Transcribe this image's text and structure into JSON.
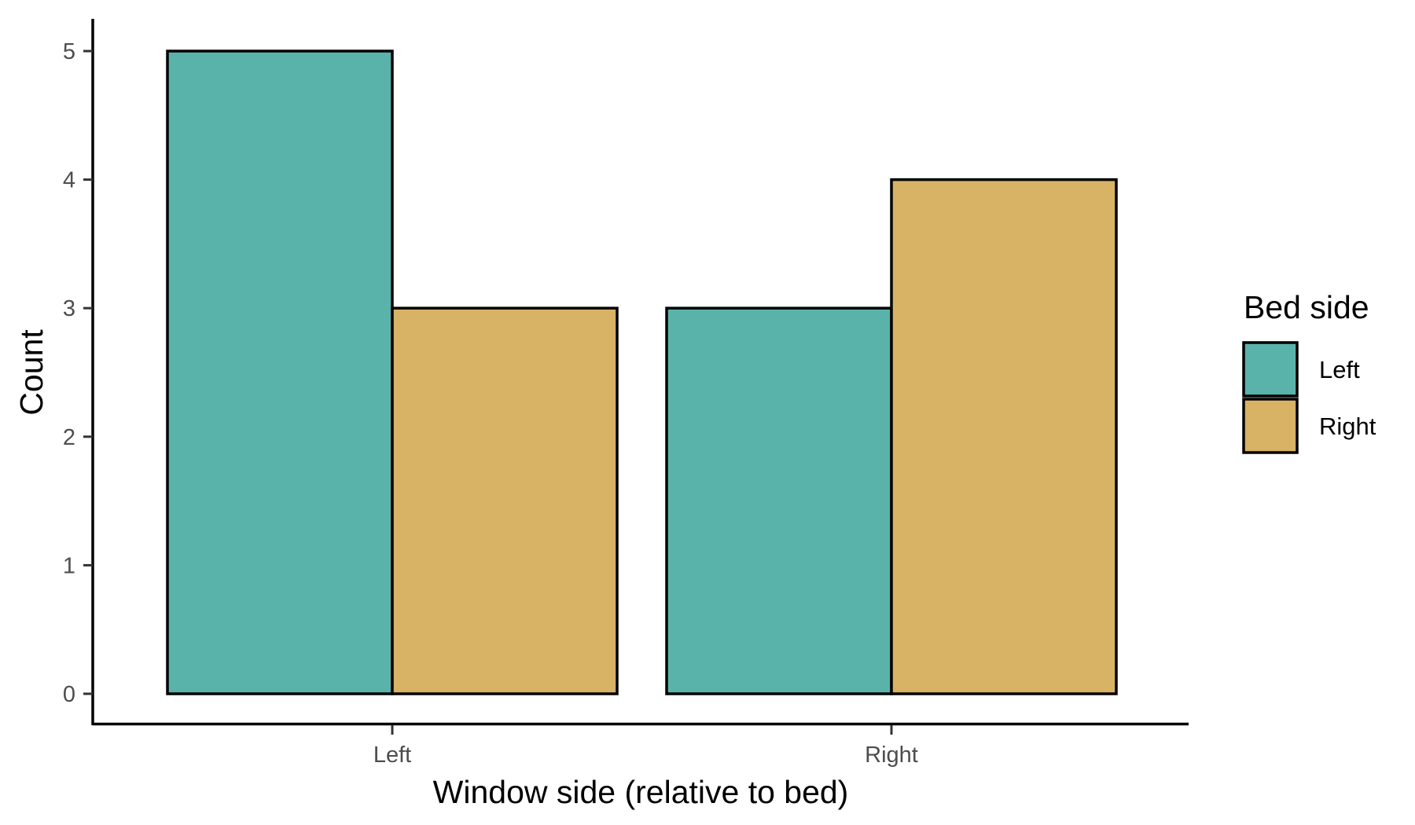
{
  "chart_data": {
    "type": "bar",
    "categories": [
      "Left",
      "Right"
    ],
    "series": [
      {
        "name": "Left",
        "values": [
          5,
          3
        ]
      },
      {
        "name": "Right",
        "values": [
          3,
          4
        ]
      }
    ],
    "xlabel": "Window side (relative to bed)",
    "ylabel": "Count",
    "ylim": [
      0,
      5
    ],
    "yticks": [
      "0",
      "1",
      "2",
      "3",
      "4",
      "5"
    ],
    "legend": {
      "title": "Bed side",
      "position": "right",
      "items": [
        "Left",
        "Right"
      ]
    },
    "grid": false,
    "colors": {
      "Left": "#5ab3aa",
      "Right": "#d8b265"
    }
  }
}
